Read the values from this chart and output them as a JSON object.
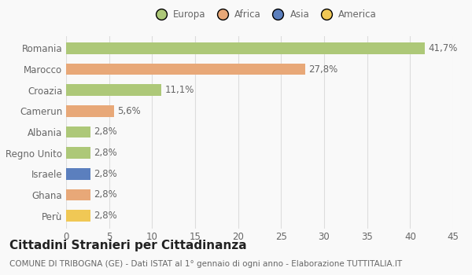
{
  "categories": [
    "Romania",
    "Marocco",
    "Croazia",
    "Camerun",
    "Albania",
    "Regno Unito",
    "Israele",
    "Ghana",
    "Perù"
  ],
  "values": [
    41.7,
    27.8,
    11.1,
    5.6,
    2.8,
    2.8,
    2.8,
    2.8,
    2.8
  ],
  "labels": [
    "41,7%",
    "27,8%",
    "11,1%",
    "5,6%",
    "2,8%",
    "2,8%",
    "2,8%",
    "2,8%",
    "2,8%"
  ],
  "colors": [
    "#adc878",
    "#e8a878",
    "#adc878",
    "#e8a878",
    "#adc878",
    "#adc878",
    "#5b7fbe",
    "#e8a878",
    "#f0c855"
  ],
  "legend_labels": [
    "Europa",
    "Africa",
    "Asia",
    "America"
  ],
  "legend_colors": [
    "#adc878",
    "#e8a878",
    "#5b7fbe",
    "#f0c855"
  ],
  "title": "Cittadini Stranieri per Cittadinanza",
  "subtitle": "COMUNE DI TRIBOGNA (GE) - Dati ISTAT al 1° gennaio di ogni anno - Elaborazione TUTTITALIA.IT",
  "xlim": [
    0,
    45
  ],
  "xticks": [
    0,
    5,
    10,
    15,
    20,
    25,
    30,
    35,
    40,
    45
  ],
  "background_color": "#f9f9f9",
  "plot_bg_color": "#f4f4f4",
  "grid_color": "#dddddd",
  "bar_height": 0.55,
  "label_fontsize": 8.5,
  "tick_fontsize": 8.5,
  "title_fontsize": 11,
  "subtitle_fontsize": 7.5,
  "label_color": "#666666",
  "title_color": "#222222",
  "subtitle_color": "#666666"
}
